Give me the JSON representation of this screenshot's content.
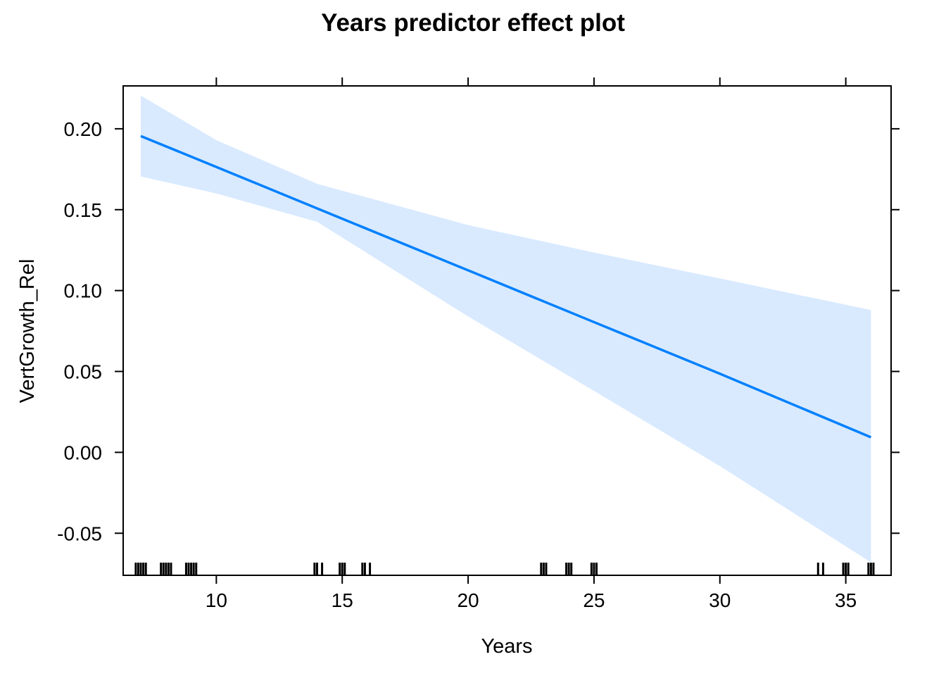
{
  "chart_data": {
    "type": "line",
    "title": "Years predictor effect plot",
    "xlabel": "Years",
    "ylabel": "VertGrowth_Rel",
    "xlim": [
      6.3,
      36.8
    ],
    "ylim": [
      -0.076,
      0.2265
    ],
    "x_ticks": [
      "10",
      "15",
      "20",
      "25",
      "30",
      "35"
    ],
    "y_ticks": [
      "-0.05",
      "0.00",
      "0.05",
      "0.10",
      "0.15",
      "0.20"
    ],
    "grid": false,
    "legend": "none",
    "colors": {
      "line": "#0080ff",
      "band": "#d9eaff",
      "rug": "#000000",
      "frame": "#000000"
    },
    "series": [
      {
        "x": [
          7,
          10,
          15,
          20,
          25,
          30,
          36
        ],
        "y": [
          0.1955,
          0.1764,
          0.1444,
          0.1125,
          0.0805,
          0.0486,
          0.0093
        ]
      }
    ],
    "confidence_band": {
      "x": [
        7,
        10,
        14,
        20,
        25,
        30,
        36
      ],
      "upper": [
        0.2205,
        0.193,
        0.166,
        0.1405,
        0.1235,
        0.1075,
        0.088
      ],
      "lower": [
        0.1705,
        0.16,
        0.1425,
        0.084,
        0.038,
        -0.0085,
        -0.068
      ]
    },
    "rug": [
      6.8,
      6.9,
      7.0,
      7.1,
      7.2,
      7.8,
      7.9,
      8.0,
      8.1,
      8.2,
      8.8,
      8.9,
      9.0,
      9.1,
      9.2,
      13.9,
      14.0,
      14.2,
      14.9,
      15.0,
      15.1,
      15.8,
      15.9,
      16.1,
      22.9,
      23.0,
      23.1,
      23.9,
      24.0,
      24.1,
      24.9,
      25.0,
      25.1,
      33.9,
      34.1,
      34.9,
      35.0,
      35.1,
      35.9,
      36.0,
      36.1
    ]
  }
}
